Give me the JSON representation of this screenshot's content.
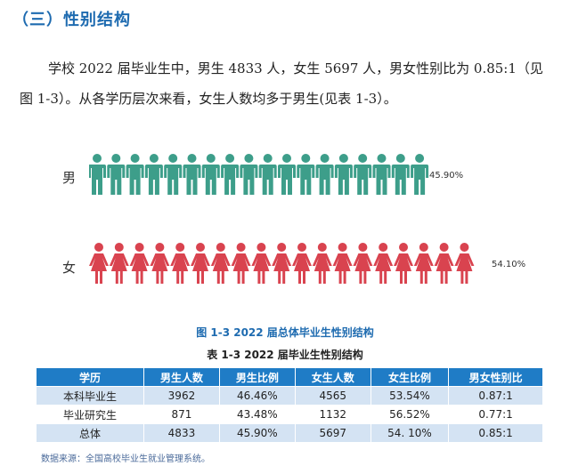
{
  "section": {
    "title": "（三）性别结构"
  },
  "intro": {
    "text": "学校 2022 届毕业生中，男生 4833 人，女生 5697 人，男女性别比为 0.85:1（见图 1-3）。从各学历层次来看，女生人数均多于男生(见表 1-3）。"
  },
  "figure": {
    "caption": "图 1-3  2022 届总体毕业生性别结构",
    "male": {
      "label": "男",
      "percent_label": "45.90%",
      "percent": 45.9,
      "color": "#3d9e8a",
      "icon": "male-person-icon"
    },
    "female": {
      "label": "女",
      "percent_label": "54.10%",
      "percent": 54.1,
      "color": "#d9434f",
      "icon": "female-person-icon"
    }
  },
  "table": {
    "caption": "表 1-3  2022 届毕业生性别结构",
    "headers": [
      "学历",
      "男生人数",
      "男生比例",
      "女生人数",
      "女生比例",
      "男女性别比"
    ],
    "rows": [
      [
        "本科毕业生",
        "3962",
        "46.46%",
        "4565",
        "53.54%",
        "0.87:1"
      ],
      [
        "毕业研究生",
        "871",
        "43.48%",
        "1132",
        "56.52%",
        "0.77:1"
      ],
      [
        "总体",
        "4833",
        "45.90%",
        "5697",
        "54. 10%",
        "0.85:1"
      ]
    ]
  },
  "source": {
    "text": "数据来源：全国高校毕业生就业管理系统。"
  }
}
